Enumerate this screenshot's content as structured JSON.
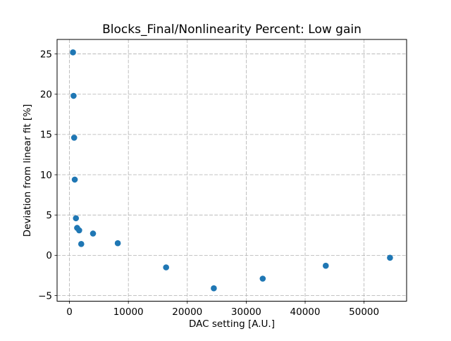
{
  "chart_data": {
    "type": "scatter",
    "title": "Blocks_Final/Nonlinearity Percent: Low gain",
    "xlabel": "DAC setting [A.U.]",
    "ylabel": "Deviation from linear fit [%]",
    "xlim": [
      -2100,
      57220
    ],
    "ylim": [
      -5.7,
      26.8
    ],
    "xticks": [
      0,
      10000,
      20000,
      30000,
      40000,
      50000
    ],
    "yticks": [
      25,
      20,
      15,
      10,
      5,
      0,
      -5
    ],
    "grid": true,
    "grid_style": "dashed",
    "grid_color": "#b0b0b0",
    "marker_color": "#1f77b4",
    "legend": "none",
    "points": [
      {
        "x": 600,
        "y": 25.2
      },
      {
        "x": 700,
        "y": 19.8
      },
      {
        "x": 800,
        "y": 14.6
      },
      {
        "x": 900,
        "y": 9.4
      },
      {
        "x": 1100,
        "y": 4.6
      },
      {
        "x": 1300,
        "y": 3.4
      },
      {
        "x": 1650,
        "y": 3.1
      },
      {
        "x": 2000,
        "y": 1.4
      },
      {
        "x": 4000,
        "y": 2.7
      },
      {
        "x": 8200,
        "y": 1.5
      },
      {
        "x": 16400,
        "y": -1.5
      },
      {
        "x": 24500,
        "y": -4.1
      },
      {
        "x": 32800,
        "y": -2.9
      },
      {
        "x": 43500,
        "y": -1.3
      },
      {
        "x": 54400,
        "y": -0.3
      }
    ]
  }
}
